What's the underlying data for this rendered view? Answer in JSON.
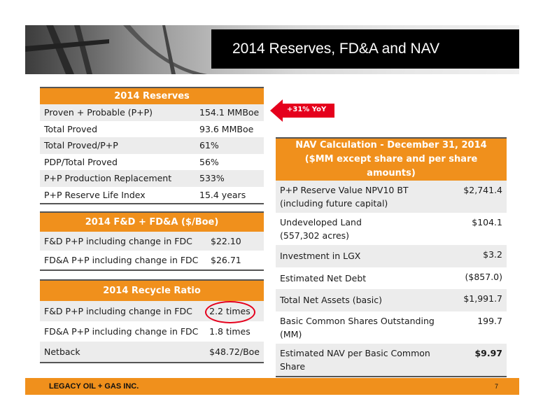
{
  "title": "2014 Reserves, FD&A and NAV",
  "callout": "+31% YoY",
  "reserves": {
    "heading": "2014 Reserves",
    "rows": [
      {
        "label": "Proven + Probable (P+P)",
        "value": "154.1 MMBoe"
      },
      {
        "label": "Total Proved",
        "value": "93.6 MMBoe"
      },
      {
        "label": "Total Proved/P+P",
        "value": "61%"
      },
      {
        "label": "PDP/Total Proved",
        "value": "56%"
      },
      {
        "label": "P+P Production Replacement",
        "value": "533%"
      },
      {
        "label": "P+P Reserve Life Index",
        "value": "15.4 years"
      }
    ]
  },
  "fda": {
    "heading": "2014 F&D + FD&A ($/Boe)",
    "rows": [
      {
        "label": "F&D P+P including change in FDC",
        "value": "$22.10"
      },
      {
        "label": "FD&A P+P including change in FDC",
        "value": "$26.71"
      }
    ]
  },
  "recycle": {
    "heading": "2014 Recycle Ratio",
    "rows": [
      {
        "label": "F&D P+P including change in FDC",
        "value": "2.2 times"
      },
      {
        "label": "FD&A P+P including change in FDC",
        "value": "1.8 times"
      },
      {
        "label": "Netback",
        "value": "$48.72/Boe"
      }
    ]
  },
  "nav": {
    "heading_line1": "NAV Calculation  - December 31, 2014",
    "heading_line2": "($MM except share and per share amounts)",
    "rows": [
      {
        "label": "P+P Reserve Value NPV10 BT",
        "label2": "(including future capital)",
        "value": "$2,741.4"
      },
      {
        "label": "Undeveloped Land",
        "label2": "(557,302 acres)",
        "value": "$104.1"
      },
      {
        "label": "Investment in LGX",
        "value": "$3.2"
      },
      {
        "label": "Estimated Net Debt",
        "value": "($857.0)"
      },
      {
        "label": "Total Net Assets (basic)",
        "value": "$1,991.7"
      },
      {
        "label": "Basic Common Shares Outstanding",
        "label2": "(MM)",
        "value": "199.7"
      },
      {
        "label": "Estimated NAV per Basic Common",
        "label2": "Share",
        "value": "$9.97"
      }
    ]
  },
  "footer": {
    "company": "LEGACY OIL + GAS INC.",
    "page": "7"
  },
  "colors": {
    "accent": "#f0901c",
    "callout": "#e5001c",
    "title_bg": "#000000"
  }
}
